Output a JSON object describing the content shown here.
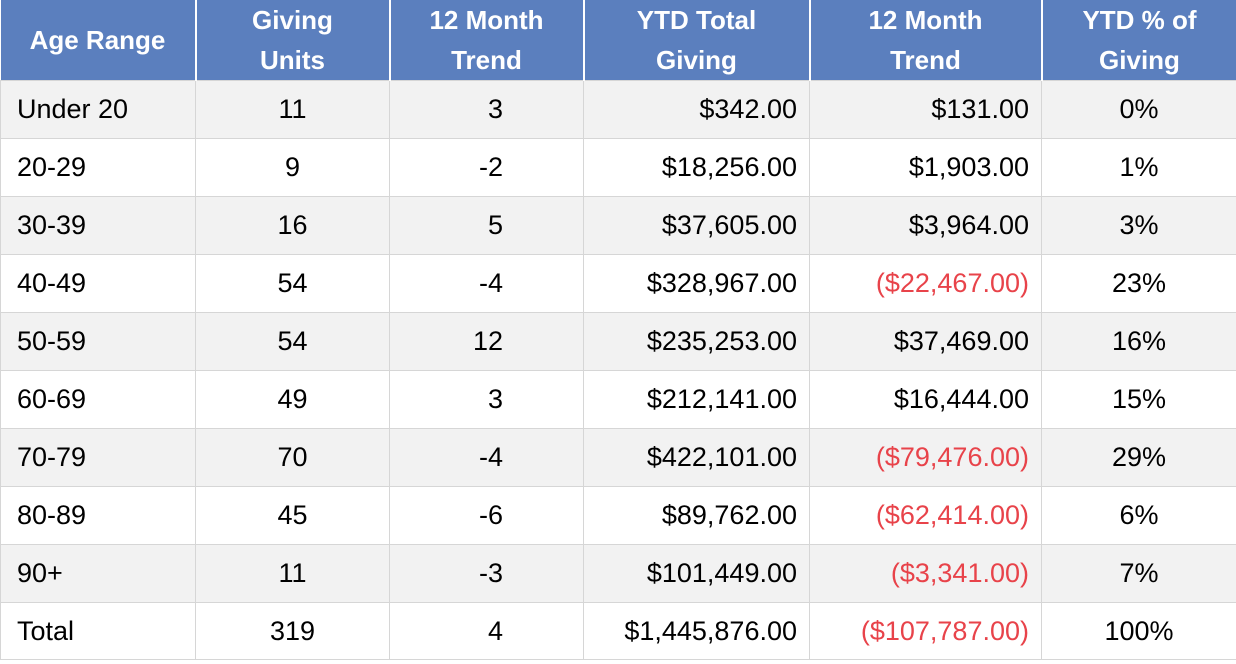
{
  "colors": {
    "header_bg": "#5b7fbe",
    "header_text": "#ffffff",
    "negative": "#e8434a",
    "shaded_row": "#f2f2f2"
  },
  "table": {
    "headers": [
      [
        "Age Range"
      ],
      [
        "Giving",
        "Units"
      ],
      [
        "12 Month",
        "Trend"
      ],
      [
        "YTD Total",
        "Giving"
      ],
      [
        "12 Month",
        "Trend"
      ],
      [
        "YTD % of",
        "Giving"
      ]
    ],
    "rows": [
      {
        "age": "Under 20",
        "units": "11",
        "trend": "3",
        "ytd": "$342.00",
        "trend_amount": "$131.00",
        "negative": false,
        "pct": "0%"
      },
      {
        "age": "20-29",
        "units": "9",
        "trend": "-2",
        "ytd": "$18,256.00",
        "trend_amount": "$1,903.00",
        "negative": false,
        "pct": "1%"
      },
      {
        "age": "30-39",
        "units": "16",
        "trend": "5",
        "ytd": "$37,605.00",
        "trend_amount": "$3,964.00",
        "negative": false,
        "pct": "3%"
      },
      {
        "age": "40-49",
        "units": "54",
        "trend": "-4",
        "ytd": "$328,967.00",
        "trend_amount": "($22,467.00)",
        "negative": true,
        "pct": "23%"
      },
      {
        "age": "50-59",
        "units": "54",
        "trend": "12",
        "ytd": "$235,253.00",
        "trend_amount": "$37,469.00",
        "negative": false,
        "pct": "16%"
      },
      {
        "age": "60-69",
        "units": "49",
        "trend": "3",
        "ytd": "$212,141.00",
        "trend_amount": "$16,444.00",
        "negative": false,
        "pct": "15%"
      },
      {
        "age": "70-79",
        "units": "70",
        "trend": "-4",
        "ytd": "$422,101.00",
        "trend_amount": "($79,476.00)",
        "negative": true,
        "pct": "29%"
      },
      {
        "age": "80-89",
        "units": "45",
        "trend": "-6",
        "ytd": "$89,762.00",
        "trend_amount": "($62,414.00)",
        "negative": true,
        "pct": "6%"
      },
      {
        "age": "90+",
        "units": "11",
        "trend": "-3",
        "ytd": "$101,449.00",
        "trend_amount": "($3,341.00)",
        "negative": true,
        "pct": "7%"
      },
      {
        "age": "Total",
        "units": "319",
        "trend": "4",
        "ytd": "$1,445,876.00",
        "trend_amount": "($107,787.00)",
        "negative": true,
        "pct": "100%"
      }
    ]
  }
}
